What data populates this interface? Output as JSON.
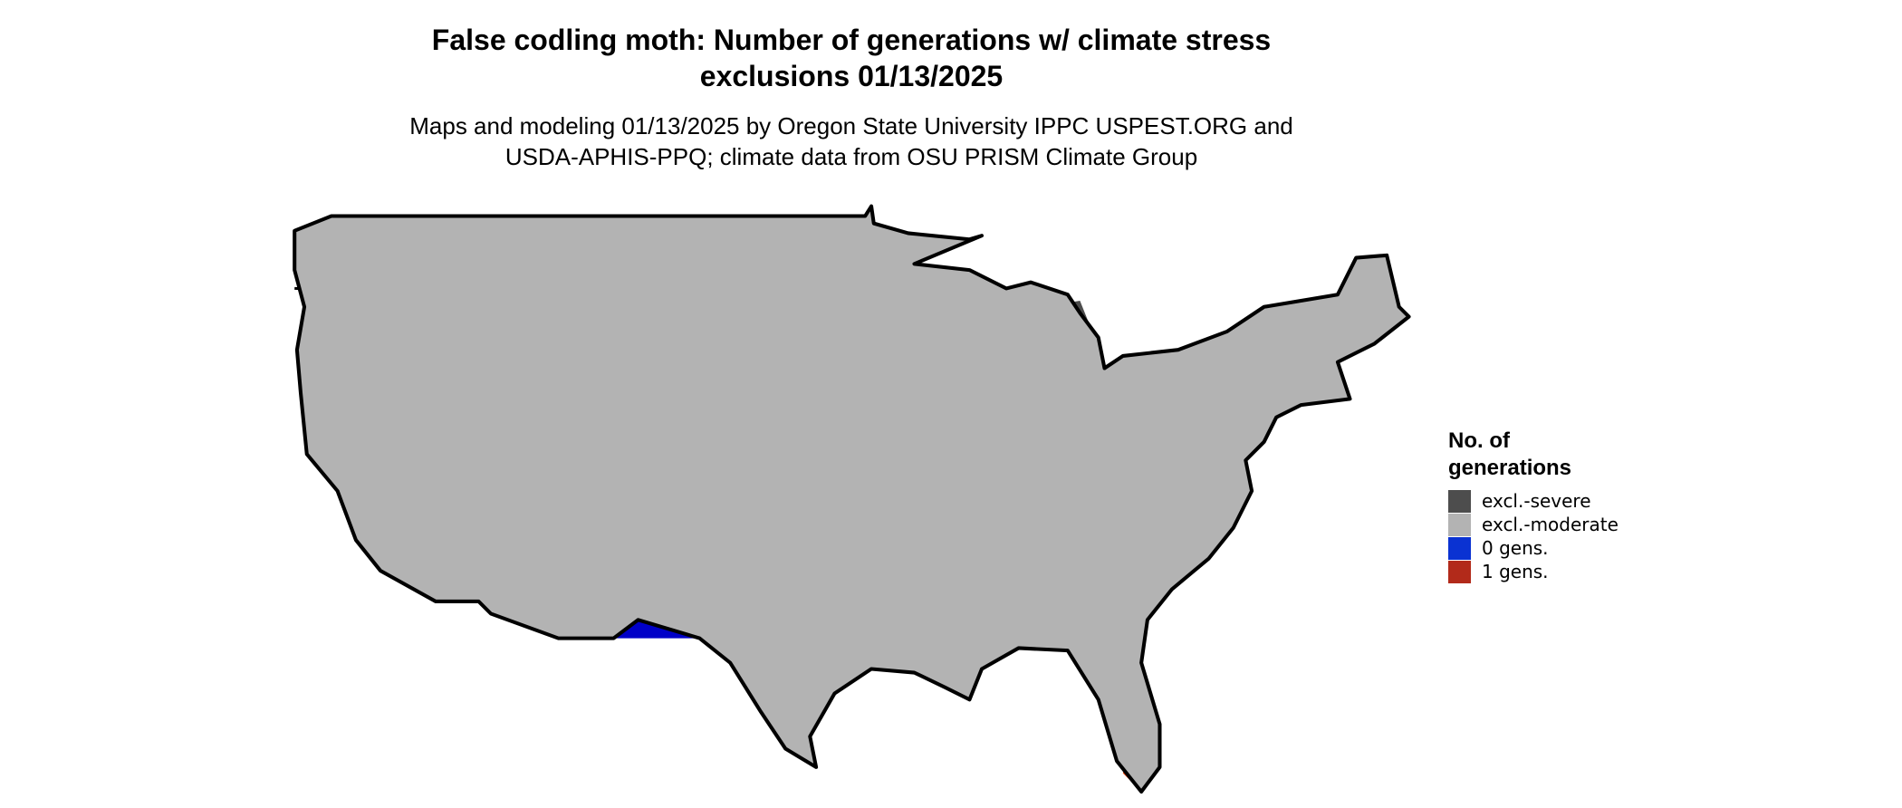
{
  "title": "False codling moth: Number of generations w/ climate stress exclusions 01/13/2025",
  "subtitle": "Maps and modeling 01/13/2025 by Oregon State University IPPC USPEST.ORG and USDA-APHIS-PPQ; climate data from OSU PRISM Climate Group",
  "legend": {
    "title": "No. of generations",
    "items": [
      {
        "label": "excl.-severe",
        "color": "#4d4d4d"
      },
      {
        "label": "excl.-moderate",
        "color": "#b3b3b3"
      },
      {
        "label": "0 gens.",
        "color": "#0a32d2"
      },
      {
        "label": "1 gens.",
        "color": "#b22a1a"
      }
    ]
  }
}
